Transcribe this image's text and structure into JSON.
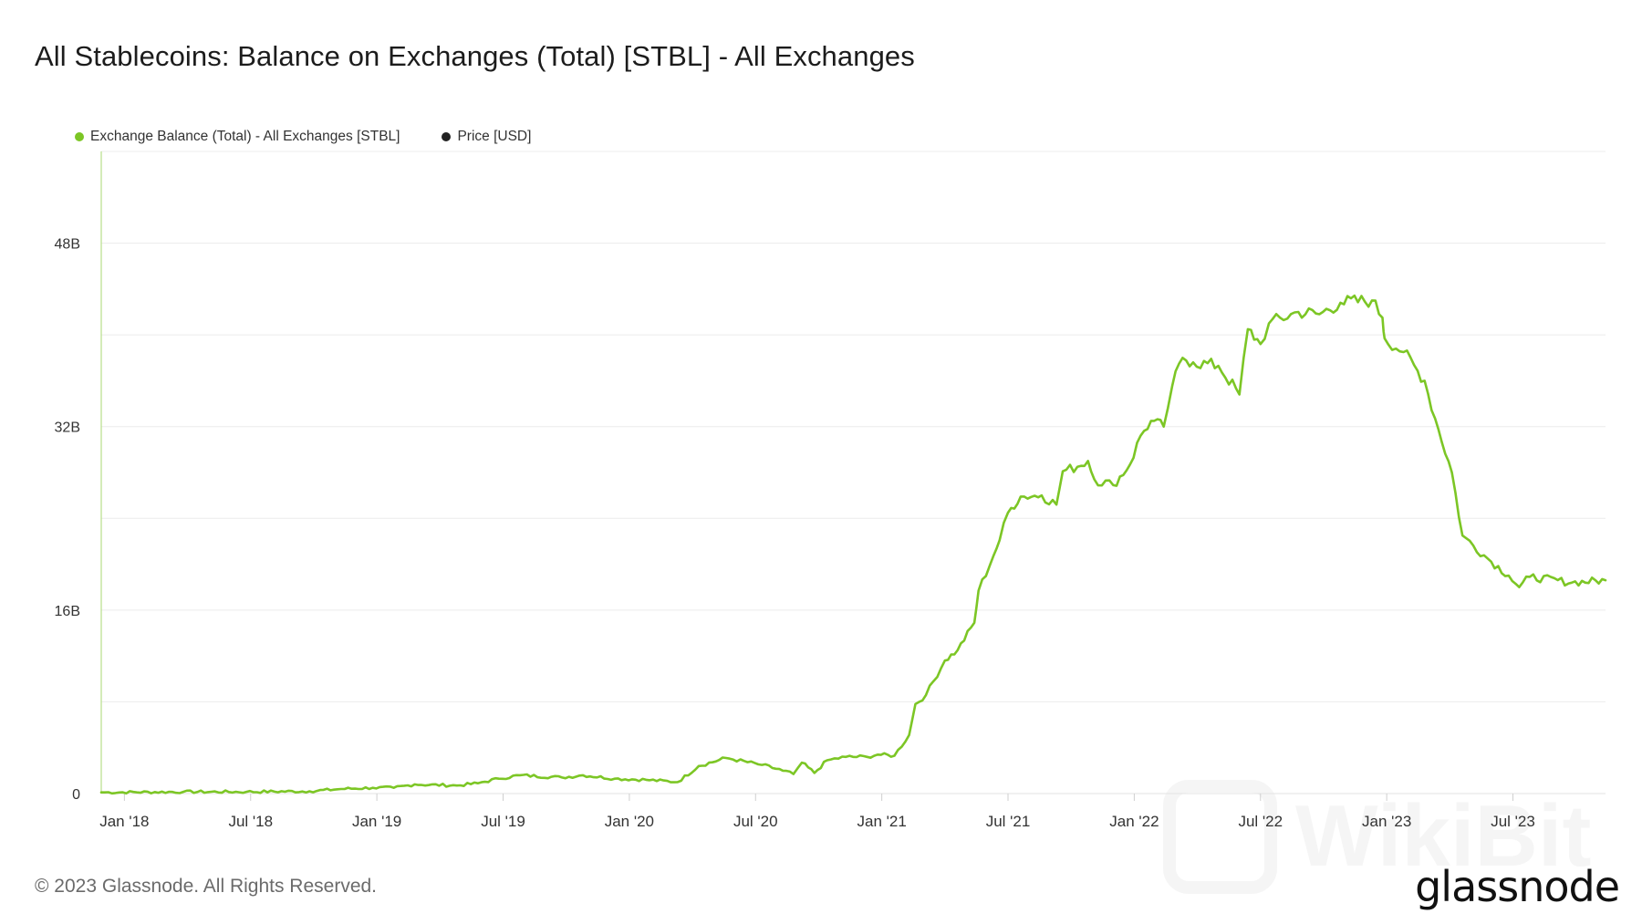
{
  "chart_data": {
    "type": "line",
    "title": "All Stablecoins: Balance on Exchanges (Total) [STBL] - All Exchanges",
    "legend": [
      {
        "name": "Exchange Balance (Total) - All Exchanges [STBL]",
        "color": "#7cc625"
      },
      {
        "name": "Price [USD]",
        "color": "#222222"
      }
    ],
    "y_ticks": [
      {
        "value": 0,
        "label": "0"
      },
      {
        "value": 16,
        "label": "16B"
      },
      {
        "value": 32,
        "label": "32B"
      },
      {
        "value": 48,
        "label": "48B"
      }
    ],
    "y_gridlines": [
      8,
      24,
      40,
      56
    ],
    "ylim": [
      0,
      56
    ],
    "x_ticks": [
      {
        "t": 0.2,
        "label": "Jan '18"
      },
      {
        "t": 6.2,
        "label": "Jul '18"
      },
      {
        "t": 12.2,
        "label": "Jan '19"
      },
      {
        "t": 18.2,
        "label": "Jul '19"
      },
      {
        "t": 24.2,
        "label": "Jan '20"
      },
      {
        "t": 30.2,
        "label": "Jul '20"
      },
      {
        "t": 36.2,
        "label": "Jan '21"
      },
      {
        "t": 42.2,
        "label": "Jul '21"
      },
      {
        "t": 48.2,
        "label": "Jan '22"
      },
      {
        "t": 54.2,
        "label": "Jul '22"
      },
      {
        "t": 60.2,
        "label": "Jan '23"
      },
      {
        "t": 66.2,
        "label": "Jul '23"
      }
    ],
    "xlim": [
      -0.9,
      70.6
    ],
    "x_unit": "months since Jan 2018",
    "y_unit": "billions",
    "series": [
      {
        "name": "Exchange Balance (Total) - All Exchanges [STBL]",
        "points": [
          [
            -0.9,
            0.1
          ],
          [
            3,
            0.15
          ],
          [
            6,
            0.15
          ],
          [
            9,
            0.2
          ],
          [
            10.5,
            0.4
          ],
          [
            12,
            0.5
          ],
          [
            13,
            0.5
          ],
          [
            14,
            0.8
          ],
          [
            16,
            0.7
          ],
          [
            17,
            0.9
          ],
          [
            18,
            1.3
          ],
          [
            19,
            1.6
          ],
          [
            21,
            1.4
          ],
          [
            22,
            1.6
          ],
          [
            23.5,
            1.3
          ],
          [
            25,
            1.2
          ],
          [
            26.5,
            1.0
          ],
          [
            27.5,
            2.4
          ],
          [
            28.8,
            3.1
          ],
          [
            30.5,
            2.5
          ],
          [
            31.5,
            2.0
          ],
          [
            32,
            1.7
          ],
          [
            32.4,
            2.7
          ],
          [
            33,
            1.8
          ],
          [
            33.6,
            2.9
          ],
          [
            34.5,
            3.2
          ],
          [
            35.5,
            3.2
          ],
          [
            36,
            3.4
          ],
          [
            36.8,
            3.3
          ],
          [
            37.5,
            5.1
          ],
          [
            37.8,
            7.8
          ],
          [
            38.3,
            8.6
          ],
          [
            39.2,
            11.6
          ],
          [
            39.8,
            12.5
          ],
          [
            40.6,
            14.9
          ],
          [
            40.8,
            17.7
          ],
          [
            41.5,
            20.7
          ],
          [
            41.8,
            22.1
          ],
          [
            42.2,
            24.5
          ],
          [
            42.8,
            25.9
          ],
          [
            43.8,
            26.0
          ],
          [
            44.5,
            25.2
          ],
          [
            44.8,
            28.1
          ],
          [
            45.5,
            28.5
          ],
          [
            46,
            29.0
          ],
          [
            46.3,
            27.4
          ],
          [
            47.2,
            26.9
          ],
          [
            48,
            28.7
          ],
          [
            48.5,
            31.2
          ],
          [
            49.0,
            32.5
          ],
          [
            49.6,
            32.0
          ],
          [
            50.0,
            35.5
          ],
          [
            50.5,
            38.0
          ],
          [
            51.0,
            37.6
          ],
          [
            52.2,
            37.3
          ],
          [
            53.2,
            34.8
          ],
          [
            53.6,
            40.5
          ],
          [
            54.2,
            39.2
          ],
          [
            54.6,
            41.0
          ],
          [
            56,
            42.0
          ],
          [
            57,
            41.8
          ],
          [
            58,
            42.8
          ],
          [
            59.5,
            43.0
          ],
          [
            60,
            41.5
          ],
          [
            60.1,
            39.7
          ],
          [
            61,
            38.5
          ],
          [
            62,
            36.0
          ],
          [
            62.5,
            32.7
          ],
          [
            63.3,
            28.0
          ],
          [
            63.8,
            22.5
          ],
          [
            65,
            20.5
          ],
          [
            66,
            19.0
          ],
          [
            66.5,
            18.0
          ],
          [
            67,
            18.9
          ],
          [
            69,
            18.4
          ],
          [
            70.6,
            18.6
          ]
        ]
      }
    ]
  },
  "footer": {
    "copyright": "© 2023 Glassnode. All Rights Reserved."
  },
  "branding": {
    "logo_text": "glassnode",
    "watermark_text": "WikiBit"
  },
  "colors": {
    "series": "#7cc625",
    "price": "#222222",
    "grid": "#ececec",
    "axis_text": "#333333"
  }
}
